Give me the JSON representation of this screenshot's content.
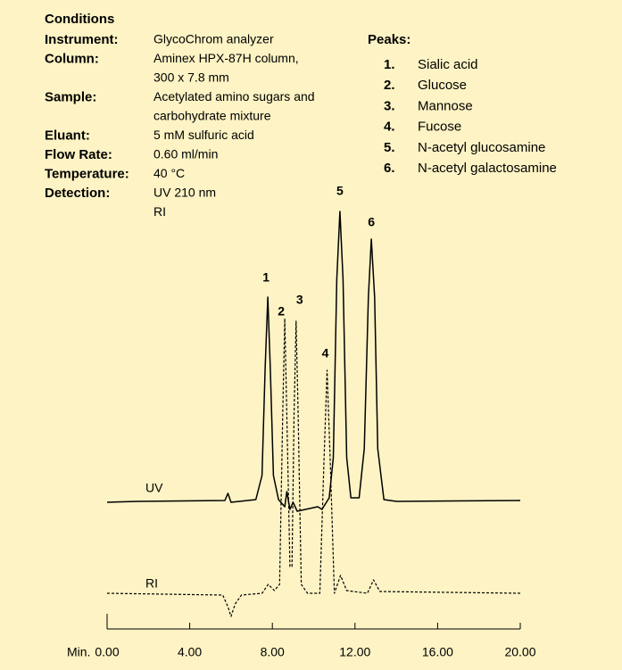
{
  "conditions": {
    "title": "Conditions",
    "rows": [
      {
        "label": "Instrument:",
        "value": [
          "GlycoChrom analyzer"
        ]
      },
      {
        "label": "Column:",
        "value": [
          "Aminex HPX-87H column,",
          "300 x 7.8 mm"
        ]
      },
      {
        "label": "Sample:",
        "value": [
          "Acetylated amino sugars and",
          "carbohydrate mixture"
        ]
      },
      {
        "label": "Eluant:",
        "value": [
          "5 mM sulfuric acid"
        ]
      },
      {
        "label": "Flow Rate:",
        "value": [
          "0.60 ml/min"
        ]
      },
      {
        "label": "Temperature:",
        "value": [
          "40 °C"
        ]
      },
      {
        "label": "Detection:",
        "value": [
          "UV 210 nm",
          "RI"
        ]
      }
    ]
  },
  "peaks": {
    "title": "Peaks:",
    "items": [
      {
        "number": "1.",
        "name": "Sialic acid"
      },
      {
        "number": "2.",
        "name": "Glucose"
      },
      {
        "number": "3.",
        "name": "Mannose"
      },
      {
        "number": "4.",
        "name": "Fucose"
      },
      {
        "number": "5.",
        "name": "N-acetyl glucosamine"
      },
      {
        "number": "6.",
        "name": "N-acetyl galactosamine"
      }
    ]
  },
  "chart_data": {
    "type": "line",
    "xlabel": "Min.",
    "xlim": [
      0,
      20
    ],
    "xticks": [
      {
        "value": 0,
        "label": "0.00"
      },
      {
        "value": 4,
        "label": "4.00"
      },
      {
        "value": 8,
        "label": "8.00"
      },
      {
        "value": 12,
        "label": "12.00"
      },
      {
        "value": 16,
        "label": "16.00"
      },
      {
        "value": 20,
        "label": "20.00"
      }
    ],
    "peak_labels": [
      {
        "text": "1",
        "x": 7.78
      },
      {
        "text": "2",
        "x": 8.6
      },
      {
        "text": "3",
        "x": 9.15
      },
      {
        "text": "4",
        "x": 10.65
      },
      {
        "text": "5",
        "x": 11.27
      },
      {
        "text": "6",
        "x": 12.79
      }
    ],
    "series": [
      {
        "name": "UV",
        "color": "#000000",
        "x": [
          0,
          1.5,
          5.7,
          5.85,
          6.0,
          7.2,
          7.5,
          7.65,
          7.78,
          7.9,
          8.05,
          8.3,
          8.6,
          8.7,
          8.85,
          9.0,
          9.2,
          10.2,
          10.4,
          10.75,
          10.95,
          11.12,
          11.27,
          11.42,
          11.6,
          11.8,
          12.2,
          12.45,
          12.65,
          12.79,
          12.95,
          13.1,
          13.4,
          14,
          20
        ],
        "values": [
          0,
          1,
          2,
          10,
          0,
          3,
          30,
          150,
          230,
          150,
          30,
          3,
          -5,
          12,
          -8,
          0,
          -10,
          -5,
          -8,
          5,
          50,
          250,
          326,
          250,
          50,
          5,
          5,
          60,
          230,
          295,
          230,
          60,
          3,
          1,
          2
        ]
      },
      {
        "name": "RI",
        "color": "#000000",
        "x": [
          0,
          5.6,
          5.85,
          6.0,
          6.2,
          6.5,
          7.5,
          7.8,
          8.1,
          8.35,
          8.5,
          8.6,
          8.7,
          8.85,
          8.95,
          9.05,
          9.15,
          9.25,
          9.4,
          9.7,
          10.3,
          10.5,
          10.65,
          10.8,
          11.0,
          11.3,
          11.6,
          12.6,
          12.9,
          13.2,
          20
        ],
        "values": [
          0,
          -2,
          -15,
          -26,
          -12,
          -2,
          0,
          10,
          3,
          10,
          200,
          308,
          200,
          30,
          30,
          200,
          305,
          200,
          10,
          0,
          0,
          150,
          250,
          150,
          0,
          20,
          3,
          0,
          15,
          2,
          0
        ]
      }
    ]
  }
}
